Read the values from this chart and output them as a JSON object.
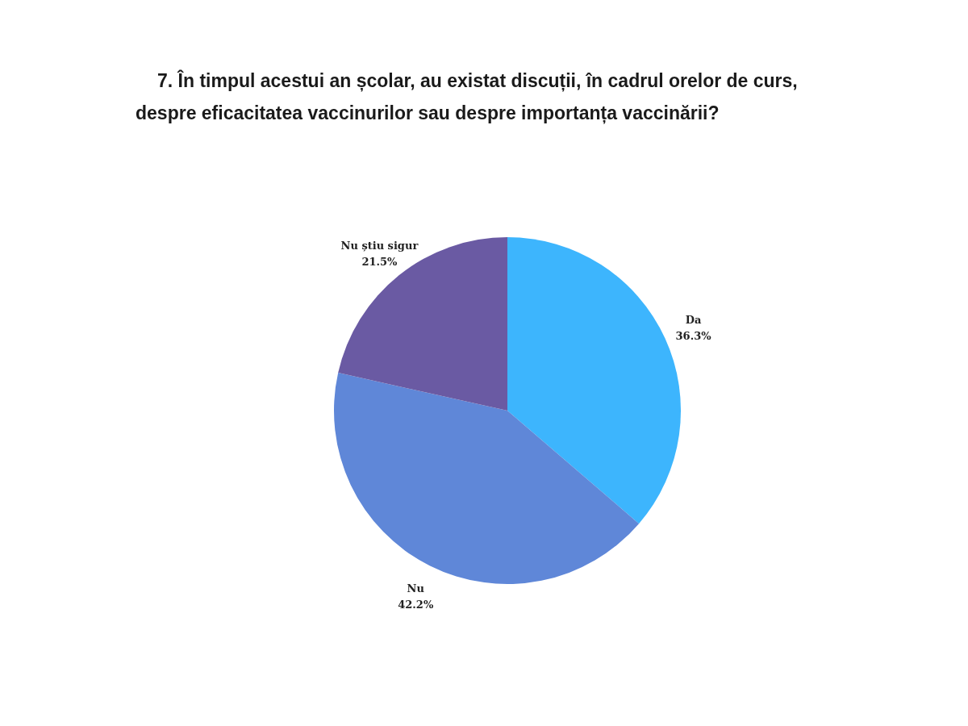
{
  "chart_data": {
    "type": "pie",
    "title": "7.   În timpul acestui an școlar, au existat discuții, în cadrul orelor de curs, despre eficacitatea vaccinurilor sau despre importanța vaccinării?",
    "categories": [
      "Da",
      "Nu",
      "Nu știu sigur"
    ],
    "values": [
      36.3,
      42.2,
      21.5
    ],
    "colors": [
      "#3db5fd",
      "#5f87d8",
      "#6a5aa3"
    ],
    "value_labels": [
      "36.3%",
      "42.2%",
      "21.5%"
    ]
  }
}
